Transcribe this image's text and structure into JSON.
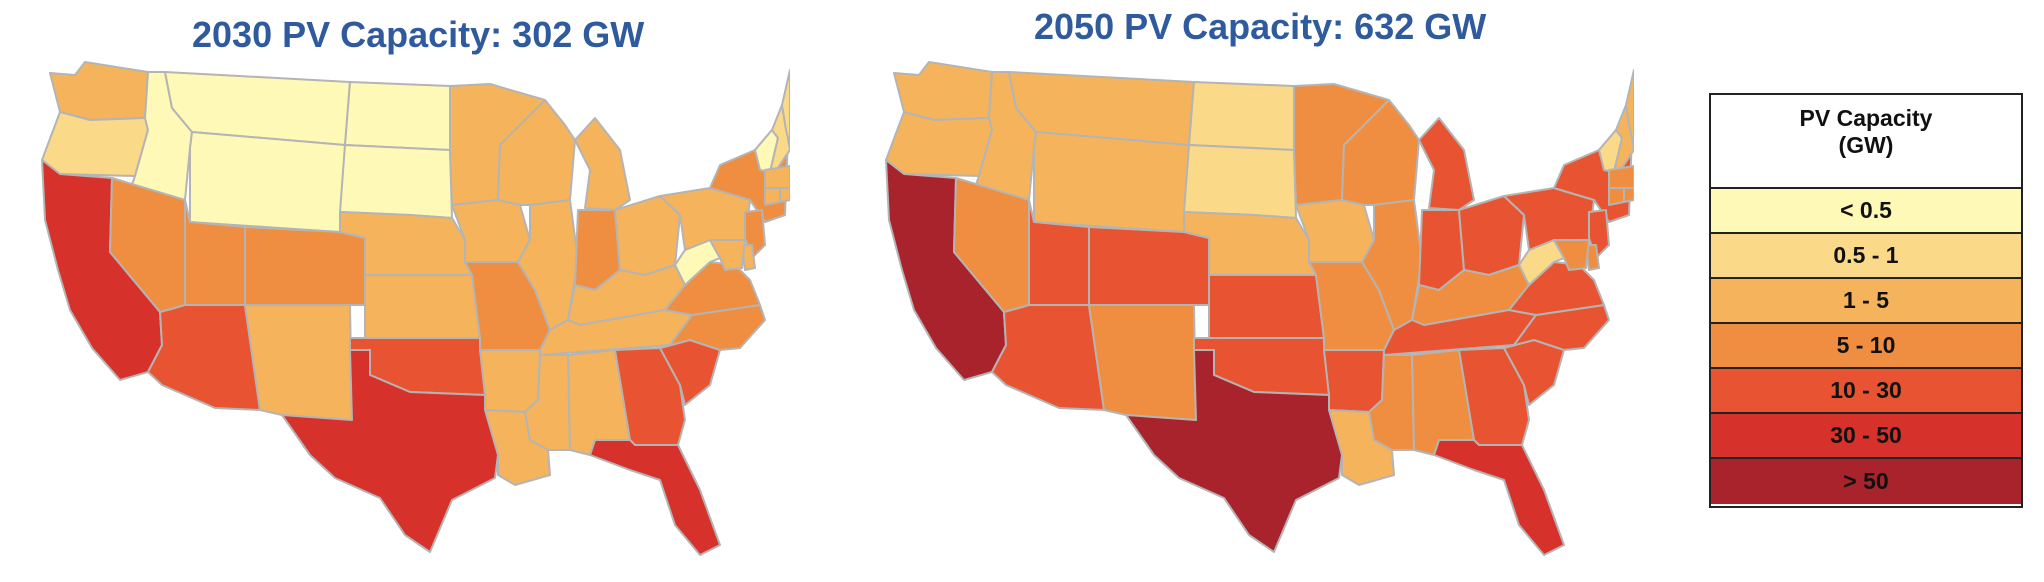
{
  "maps": [
    {
      "id": "2030",
      "title": "2030 PV Capacity: 302 GW",
      "states": {
        "WA": 2,
        "OR": 1,
        "CA": 5,
        "ID": 0,
        "NV": 3,
        "MT": 0,
        "WY": 0,
        "UT": 3,
        "AZ": 4,
        "CO": 3,
        "NM": 2,
        "ND": 0,
        "SD": 0,
        "NE": 2,
        "KS": 2,
        "OK": 4,
        "TX": 5,
        "MN": 2,
        "IA": 2,
        "MO": 3,
        "AR": 2,
        "LA": 2,
        "WI": 2,
        "IL": 2,
        "MI": 2,
        "IN": 3,
        "OH": 2,
        "KY": 2,
        "TN": 2,
        "MS": 2,
        "AL": 2,
        "GA": 4,
        "FL": 5,
        "SC": 4,
        "NC": 3,
        "VA": 3,
        "WV": 0,
        "PA": 2,
        "NY": 3,
        "VT": 0,
        "NH": 1,
        "ME": 1,
        "MA": 2,
        "CT": 2,
        "RI": 2,
        "NJ": 3,
        "DE": 2,
        "MD": 2
      }
    },
    {
      "id": "2050",
      "title": "2050 PV Capacity: 632 GW",
      "states": {
        "WA": 2,
        "OR": 2,
        "CA": 6,
        "ID": 2,
        "NV": 3,
        "MT": 2,
        "WY": 2,
        "UT": 4,
        "AZ": 4,
        "CO": 4,
        "NM": 3,
        "ND": 1,
        "SD": 1,
        "NE": 2,
        "KS": 4,
        "OK": 4,
        "TX": 6,
        "MN": 3,
        "IA": 2,
        "MO": 3,
        "AR": 4,
        "LA": 2,
        "WI": 3,
        "IL": 3,
        "MI": 4,
        "IN": 4,
        "OH": 4,
        "KY": 3,
        "TN": 4,
        "MS": 3,
        "AL": 3,
        "GA": 4,
        "FL": 5,
        "SC": 4,
        "NC": 4,
        "VA": 4,
        "WV": 1,
        "PA": 4,
        "NY": 4,
        "VT": 1,
        "NH": 2,
        "ME": 2,
        "MA": 3,
        "CT": 3,
        "RI": 3,
        "NJ": 4,
        "DE": 3,
        "MD": 3
      }
    }
  ],
  "legend": {
    "title_line1": "PV Capacity",
    "title_line2": "(GW)",
    "bins": [
      {
        "label": "< 0.5",
        "color": "#fff9b8"
      },
      {
        "label": "0.5 - 1",
        "color": "#fad988"
      },
      {
        "label": "1 - 5",
        "color": "#f5b45c"
      },
      {
        "label": "5 - 10",
        "color": "#ef8e40"
      },
      {
        "label": "10 - 30",
        "color": "#e85431"
      },
      {
        "label": "30 - 50",
        "color": "#d6312a"
      },
      {
        "label": "> 50",
        "color": "#a8232b"
      }
    ]
  }
}
